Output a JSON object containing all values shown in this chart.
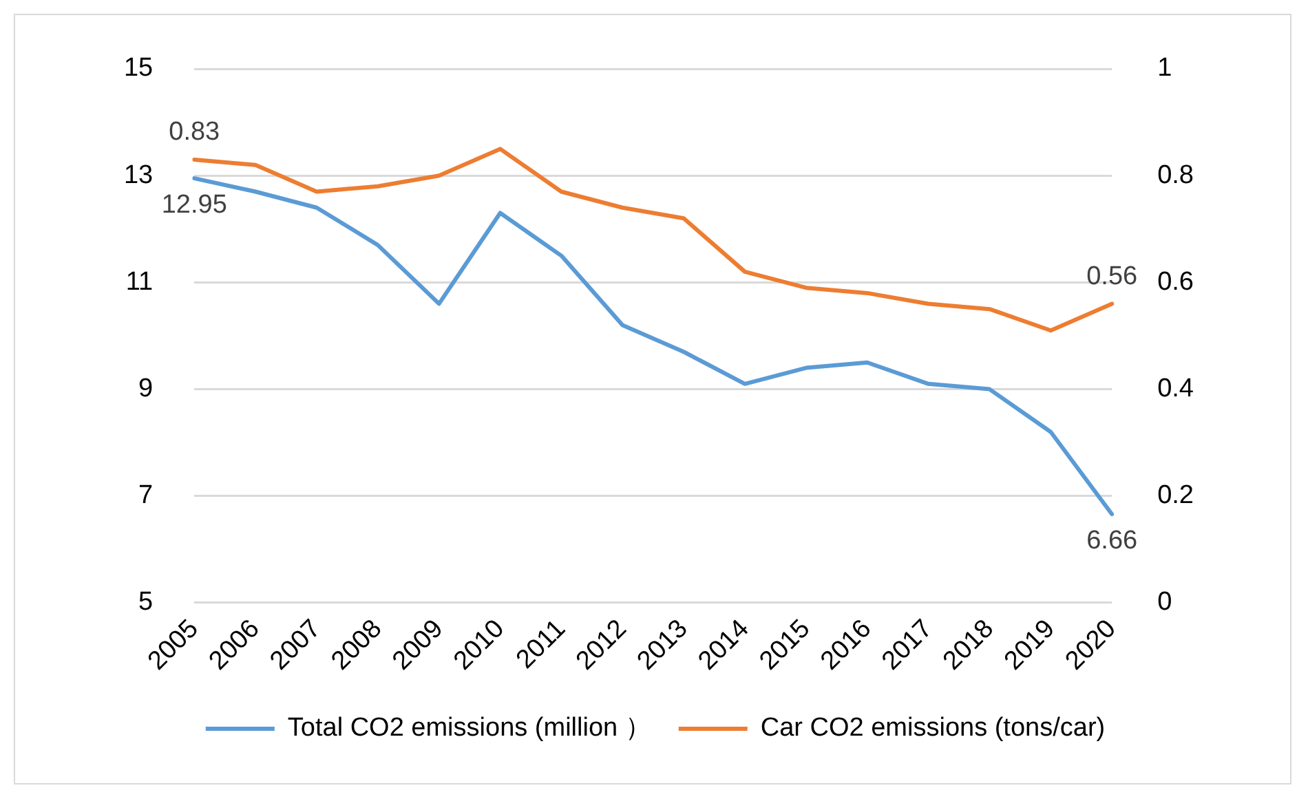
{
  "chart_data": {
    "type": "line",
    "categories": [
      "2005",
      "2006",
      "2007",
      "2008",
      "2009",
      "2010",
      "2011",
      "2012",
      "2013",
      "2014",
      "2015",
      "2016",
      "2017",
      "2018",
      "2019",
      "2020"
    ],
    "series": [
      {
        "name": "Total CO2 emissions (million ）",
        "color": "#5b9bd5",
        "values": [
          12.95,
          12.7,
          12.4,
          11.7,
          10.6,
          12.3,
          11.5,
          10.2,
          9.7,
          9.1,
          9.4,
          9.5,
          9.1,
          9.0,
          8.2,
          6.66
        ],
        "value_labels": [
          "12.95",
          null,
          null,
          null,
          null,
          null,
          null,
          null,
          null,
          null,
          null,
          null,
          null,
          null,
          null,
          "6.66"
        ]
      },
      {
        "name": "Car CO2 emissions (tons/car)",
        "color": "#ed7d31",
        "axis": "y2",
        "values": [
          0.83,
          0.82,
          0.77,
          0.78,
          0.8,
          0.85,
          0.77,
          0.74,
          0.72,
          0.62,
          0.59,
          0.58,
          0.56,
          0.55,
          0.51,
          0.56
        ],
        "value_labels": [
          "0.83",
          null,
          null,
          null,
          null,
          null,
          null,
          null,
          null,
          null,
          null,
          null,
          null,
          null,
          null,
          "0.56"
        ]
      }
    ],
    "ylim": [
      5,
      15
    ],
    "yticks": [
      5,
      7,
      9,
      11,
      13,
      15
    ],
    "y2lim": [
      0,
      1
    ],
    "y2ticks": [
      0,
      0.2,
      0.4,
      0.6,
      0.8,
      1
    ],
    "grid": "y",
    "legend": "bottom",
    "marker": "none",
    "line_style": "solid"
  }
}
